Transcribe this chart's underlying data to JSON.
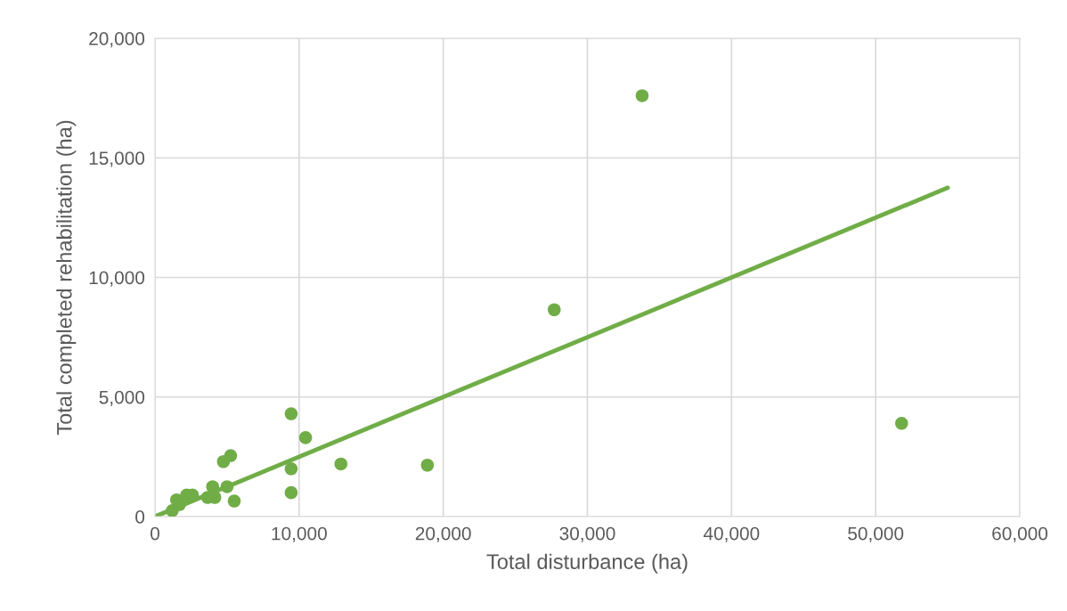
{
  "chart_data": {
    "type": "scatter",
    "xlabel": "Total disturbance (ha)",
    "ylabel": "Total completed rehabilitation (ha)",
    "xlim": [
      0,
      60000
    ],
    "ylim": [
      0,
      20000
    ],
    "xticks": [
      {
        "value": 0,
        "label": "0"
      },
      {
        "value": 10000,
        "label": "10,000"
      },
      {
        "value": 20000,
        "label": "20,000"
      },
      {
        "value": 30000,
        "label": "30,000"
      },
      {
        "value": 40000,
        "label": "40,000"
      },
      {
        "value": 50000,
        "label": "50,000"
      },
      {
        "value": 60000,
        "label": "60,000"
      }
    ],
    "yticks": [
      {
        "value": 0,
        "label": "0"
      },
      {
        "value": 5000,
        "label": "5,000"
      },
      {
        "value": 10000,
        "label": "10,000"
      },
      {
        "value": 15000,
        "label": "15,000"
      },
      {
        "value": 20000,
        "label": "20,000"
      }
    ],
    "grid": true,
    "series": [
      {
        "marker": "circle",
        "color": "#70ad47",
        "x": [
          1200,
          1500,
          1700,
          2200,
          2600,
          3650,
          4000,
          4150,
          5000,
          4750,
          5250,
          5500,
          9450,
          9450,
          9450,
          10450,
          12900,
          18900,
          27700,
          33800,
          51800
        ],
        "values": [
          250,
          700,
          500,
          900,
          900,
          800,
          1250,
          800,
          1250,
          2300,
          2550,
          650,
          4300,
          2000,
          1000,
          3300,
          2200,
          2150,
          8650,
          17600,
          3900
        ]
      },
      {
        "type": "line",
        "marker": "none",
        "color": "#70ad47",
        "x": [
          0,
          55000
        ],
        "values": [
          0,
          13750
        ]
      }
    ]
  }
}
